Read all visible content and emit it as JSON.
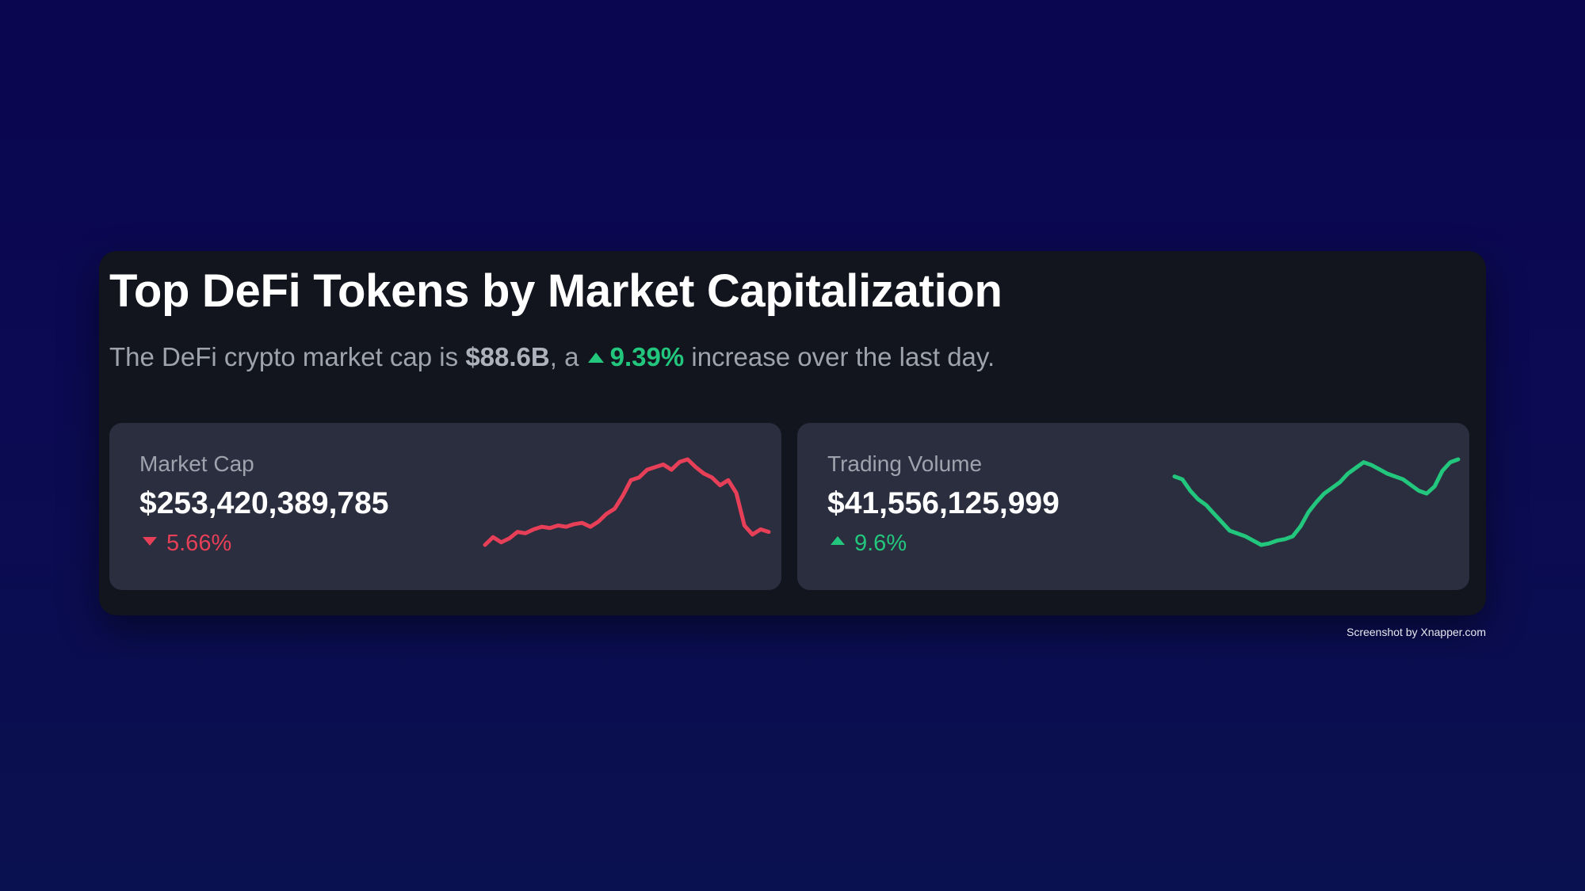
{
  "card": {
    "title": "Top DeFi Tokens by Market Capitalization",
    "summary": {
      "prefix": "The DeFi crypto market cap is",
      "total": "$88.6B",
      "middle": ", a",
      "change": "9.39%",
      "suffix": "increase over the last day."
    }
  },
  "stats": [
    {
      "label": "Market Cap",
      "value": "$253,420,389,785",
      "change": "5.66%",
      "direction": "down",
      "color": "#e63f57",
      "sparkline": [
        20,
        26,
        22,
        25,
        30,
        29,
        32,
        34,
        33,
        35,
        34,
        36,
        37,
        34,
        38,
        44,
        48,
        58,
        70,
        72,
        78,
        80,
        82,
        78,
        84,
        86,
        80,
        75,
        72,
        66,
        70,
        60,
        35,
        28,
        32,
        30
      ]
    },
    {
      "label": "Trading Volume",
      "value": "$41,556,125,999",
      "change": "9.6%",
      "direction": "up",
      "color": "#22c77d",
      "sparkline": [
        80,
        78,
        70,
        64,
        60,
        54,
        48,
        42,
        40,
        38,
        35,
        32,
        33,
        35,
        36,
        38,
        45,
        55,
        62,
        68,
        72,
        76,
        82,
        86,
        90,
        88,
        85,
        82,
        80,
        78,
        74,
        70,
        68,
        73,
        84,
        90,
        92
      ]
    }
  ],
  "credit": "Screenshot by Xnapper.com"
}
